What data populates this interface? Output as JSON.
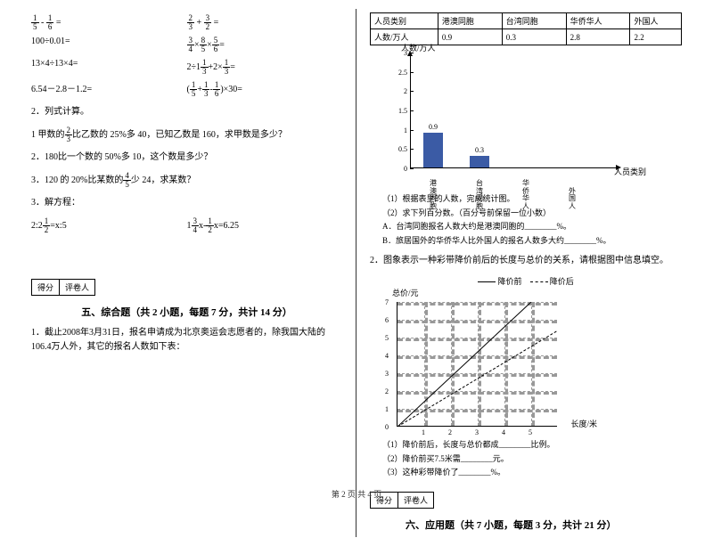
{
  "page_footer": "第 2 页 共 4 页",
  "left": {
    "calc": {
      "r1a": {
        "n1": "1",
        "d1": "5",
        "n2": "1",
        "d2": "6",
        "op": "-"
      },
      "r1b": {
        "n1": "2",
        "d1": "3",
        "n2": "3",
        "d2": "2",
        "op": "+"
      },
      "r2a": "100÷0.01=",
      "r2b": {
        "text": "×",
        "parts": [
          "3",
          "4",
          "8",
          "5",
          "5",
          "6"
        ]
      },
      "r3a": "13×4÷13×4=",
      "r3b_pre": "2÷1",
      "r3b_n1": "1",
      "r3b_d1": "3",
      "r3b_mid": "+2×",
      "r3b_n2": "1",
      "r3b_d2": "3",
      "r4a": "6.54－2.8－1.2=",
      "r4b_p1n": "1",
      "r4b_p1d": "5",
      "r4b_p2n": "1",
      "r4b_p2d": "3",
      "r4b_p3n": "1",
      "r4b_p3d": "6",
      "r4b_tail": "×30="
    },
    "q2": {
      "title": "2．列式计算。",
      "i1_pre": "1 甲数的",
      "i1_n": "2",
      "i1_d": "3",
      "i1_tail": "比乙数的 25%多 40，已知乙数是 160，求甲数是多少？",
      "i2": "2．180比一个数的 50%多 10，这个数是多少？",
      "i3_pre": "3．120 的 20%比某数的",
      "i3_n": "4",
      "i3_d": "5",
      "i3_tail": "少 24，求某数？"
    },
    "q3": {
      "title": "3．解方程：",
      "eq1_pre": "2:2",
      "eq1_n": "1",
      "eq1_d": "2",
      "eq1_tail": "=x:5",
      "eq2_pre": "1",
      "eq2_n1": "3",
      "eq2_d1": "4",
      "eq2_mid": "x-",
      "eq2_n2": "1",
      "eq2_d2": "2",
      "eq2_tail": "x=6.25"
    },
    "score": {
      "c1": "得分",
      "c2": "评卷人"
    },
    "section5": "五、综合题（共 2 小题，每题 7 分，共计 14 分）",
    "q5_1": "1．截止2008年3月31日，报名申请成为北京奥运会志愿者的，除我国大陆的106.4万人外，其它的报名人数如下表："
  },
  "right": {
    "table": {
      "h1": "人员类别",
      "h2": "港澳同胞",
      "h3": "台湾同胞",
      "h4": "华侨华人",
      "h5": "外国人",
      "r1": "人数/万人",
      "v1": "0.9",
      "v2": "0.3",
      "v3": "2.8",
      "v4": "2.2"
    },
    "bar_chart": {
      "ylabel": "人数/万人",
      "xlabel": "人员类别",
      "ticks": [
        "0",
        "0.5",
        "1",
        "1.5",
        "2",
        "2.5",
        "3"
      ],
      "bars": [
        {
          "label": "港澳同胞",
          "value": 0.9,
          "text": "0.9",
          "color": "#3b5ba5"
        },
        {
          "label": "台湾同胞",
          "value": 0.3,
          "text": "0.3",
          "color": "#3b5ba5"
        },
        {
          "label": "华侨华人",
          "value": null,
          "text": "",
          "color": "#3b5ba5"
        },
        {
          "label": "外国人",
          "value": null,
          "text": "",
          "color": "#3b5ba5"
        }
      ],
      "ymax": 3
    },
    "sub1": "（1）根据表里的人数，完成统计图。",
    "sub2": "（2）求下列百分数。（百分号前保留一位小数）",
    "subA": "A．台湾同胞报名人数大约是港澳同胞的________%。",
    "subB": "B．旅居国外的华侨华人比外国人的报名人数多大约________%。",
    "q2_title": "2．图象表示一种彩带降价前后的长度与总价的关系，请根据图中信息填空。",
    "legend": {
      "t1": "降价前",
      "t2": "降价后"
    },
    "line_chart": {
      "ylabel": "总价/元",
      "xlabel": "长度/米",
      "yticks": [
        "0",
        "1",
        "2",
        "3",
        "4",
        "5",
        "6",
        "7"
      ],
      "xticks": [
        "1",
        "2",
        "3",
        "4",
        "5"
      ]
    },
    "line_sub1": "（1）降价前后，长度与总价都成________比例。",
    "line_sub2": "（2）降价前买7.5米需________元。",
    "line_sub3": "（3）这种彩带降价了________%。",
    "score": {
      "c1": "得分",
      "c2": "评卷人"
    },
    "section6": "六、应用题（共 7 小题，每题 3 分，共计 21 分）"
  }
}
